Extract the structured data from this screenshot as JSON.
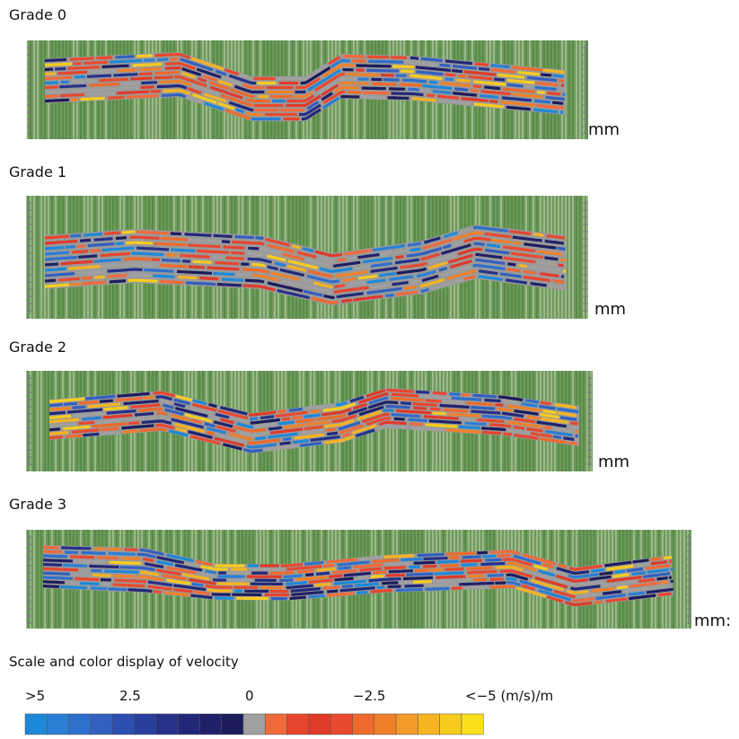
{
  "panels": [
    {
      "label": "Grade 0",
      "unit": "mm"
    },
    {
      "label": "Grade 1",
      "unit": "mm"
    },
    {
      "label": "Grade 2",
      "unit": "mm"
    },
    {
      "label": "Grade 3",
      "unit": "mm:"
    }
  ],
  "scale": {
    "title": "Scale and color display of velocity",
    "labels": [
      ">5",
      "2.5",
      "0",
      "−2.5",
      "<−5 (m/s)/m"
    ],
    "colors": [
      "#1e88d8",
      "#2a7fd4",
      "#2f6fcc",
      "#3160c0",
      "#2c4fb0",
      "#283f9c",
      "#26318a",
      "#222878",
      "#20216a",
      "#1c1c5c",
      "#a0a0a0",
      "#f06a3a",
      "#e8452e",
      "#e03a2a",
      "#e84a30",
      "#ee6a2c",
      "#f0802a",
      "#f49a28",
      "#f6b422",
      "#f8cc1e",
      "#fae01a"
    ]
  }
}
